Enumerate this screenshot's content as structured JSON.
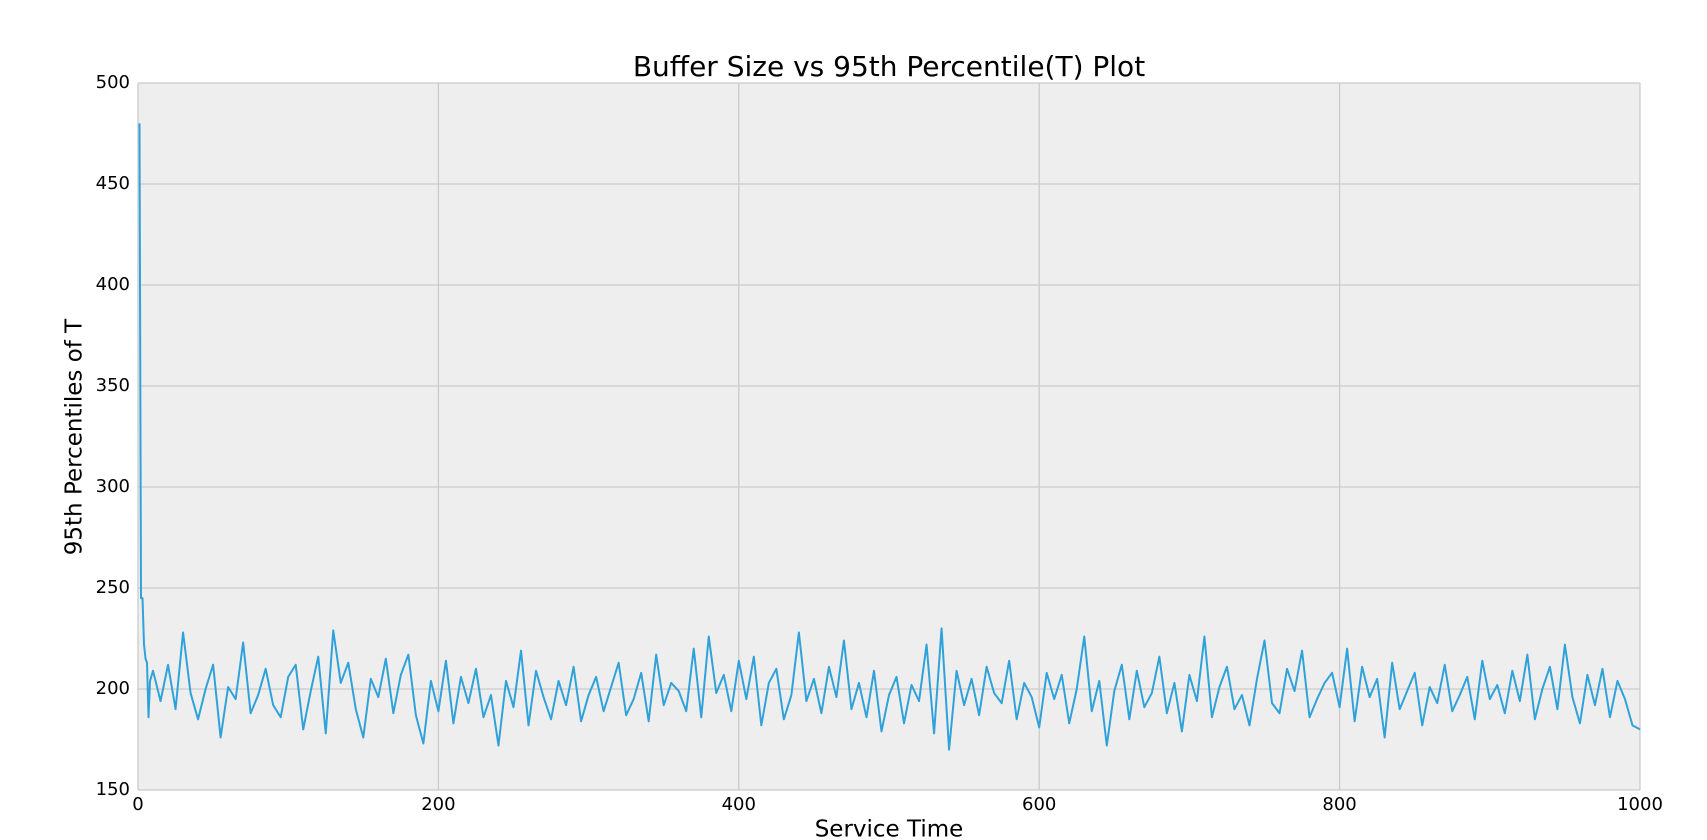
{
  "chart_data": {
    "type": "line",
    "title": "Buffer Size vs 95th Percentile(T) Plot",
    "x_label": "Service Time",
    "y_label": "95th Percentiles of T",
    "color": "#30a2da",
    "grid": true,
    "xlim": [
      0,
      1000
    ],
    "xticks": [
      0,
      200,
      400,
      600,
      800,
      1000
    ],
    "ylim": [
      150,
      500
    ],
    "yticks": [
      150,
      200,
      250,
      300,
      350,
      400,
      450,
      500
    ],
    "x": [
      1,
      2,
      3,
      4,
      5,
      6,
      7,
      8,
      10,
      15,
      20,
      25,
      30,
      35,
      40,
      45,
      50,
      55,
      60,
      65,
      70,
      75,
      80,
      85,
      90,
      95,
      100,
      105,
      110,
      115,
      120,
      125,
      130,
      135,
      140,
      145,
      150,
      155,
      160,
      165,
      170,
      175,
      180,
      185,
      190,
      195,
      200,
      205,
      210,
      215,
      220,
      225,
      230,
      235,
      240,
      245,
      250,
      255,
      260,
      265,
      270,
      275,
      280,
      285,
      290,
      295,
      300,
      305,
      310,
      315,
      320,
      325,
      330,
      335,
      340,
      345,
      350,
      355,
      360,
      365,
      370,
      375,
      380,
      385,
      390,
      395,
      400,
      405,
      410,
      415,
      420,
      425,
      430,
      435,
      440,
      445,
      450,
      455,
      460,
      465,
      470,
      475,
      480,
      485,
      490,
      495,
      500,
      505,
      510,
      515,
      520,
      525,
      530,
      535,
      540,
      545,
      550,
      555,
      560,
      565,
      570,
      575,
      580,
      585,
      590,
      595,
      600,
      605,
      610,
      615,
      620,
      625,
      630,
      635,
      640,
      645,
      650,
      655,
      660,
      665,
      670,
      675,
      680,
      685,
      690,
      695,
      700,
      705,
      710,
      715,
      720,
      725,
      730,
      735,
      740,
      745,
      750,
      755,
      760,
      765,
      770,
      775,
      780,
      785,
      790,
      795,
      800,
      805,
      810,
      815,
      820,
      825,
      830,
      835,
      840,
      845,
      850,
      855,
      860,
      865,
      870,
      875,
      880,
      885,
      890,
      895,
      900,
      905,
      910,
      915,
      920,
      925,
      930,
      935,
      940,
      945,
      950,
      955,
      960,
      965,
      970,
      975,
      980,
      985,
      990,
      995,
      1000
    ],
    "values": [
      480,
      245,
      245,
      222,
      215,
      213,
      186,
      204,
      209,
      194,
      212,
      190,
      228,
      198,
      185,
      200,
      212,
      176,
      201,
      195,
      223,
      188,
      197,
      210,
      192,
      186,
      206,
      212,
      180,
      199,
      216,
      178,
      229,
      203,
      213,
      190,
      176,
      205,
      196,
      215,
      188,
      207,
      217,
      187,
      173,
      204,
      189,
      214,
      183,
      206,
      193,
      210,
      186,
      197,
      172,
      204,
      191,
      219,
      182,
      209,
      196,
      185,
      204,
      192,
      211,
      184,
      197,
      206,
      189,
      201,
      213,
      187,
      195,
      208,
      184,
      217,
      192,
      203,
      199,
      189,
      220,
      186,
      226,
      198,
      207,
      189,
      214,
      195,
      216,
      182,
      203,
      210,
      185,
      197,
      228,
      194,
      205,
      188,
      211,
      196,
      224,
      190,
      203,
      186,
      209,
      179,
      197,
      206,
      183,
      202,
      194,
      222,
      178,
      230,
      170,
      209,
      192,
      205,
      187,
      211,
      198,
      193,
      214,
      185,
      203,
      196,
      181,
      208,
      195,
      207,
      183,
      200,
      226,
      189,
      204,
      172,
      199,
      212,
      185,
      209,
      191,
      198,
      216,
      188,
      203,
      179,
      207,
      194,
      226,
      186,
      201,
      211,
      190,
      197,
      182,
      205,
      224,
      193,
      188,
      210,
      199,
      219,
      186,
      195,
      203,
      208,
      191,
      220,
      184,
      211,
      196,
      205,
      176,
      213,
      190,
      199,
      208,
      182,
      201,
      193,
      212,
      189,
      197,
      206,
      185,
      214,
      195,
      202,
      188,
      209,
      194,
      217,
      185,
      200,
      211,
      190,
      222,
      196,
      183,
      207,
      192,
      210,
      186,
      204,
      195,
      182,
      180
    ]
  }
}
